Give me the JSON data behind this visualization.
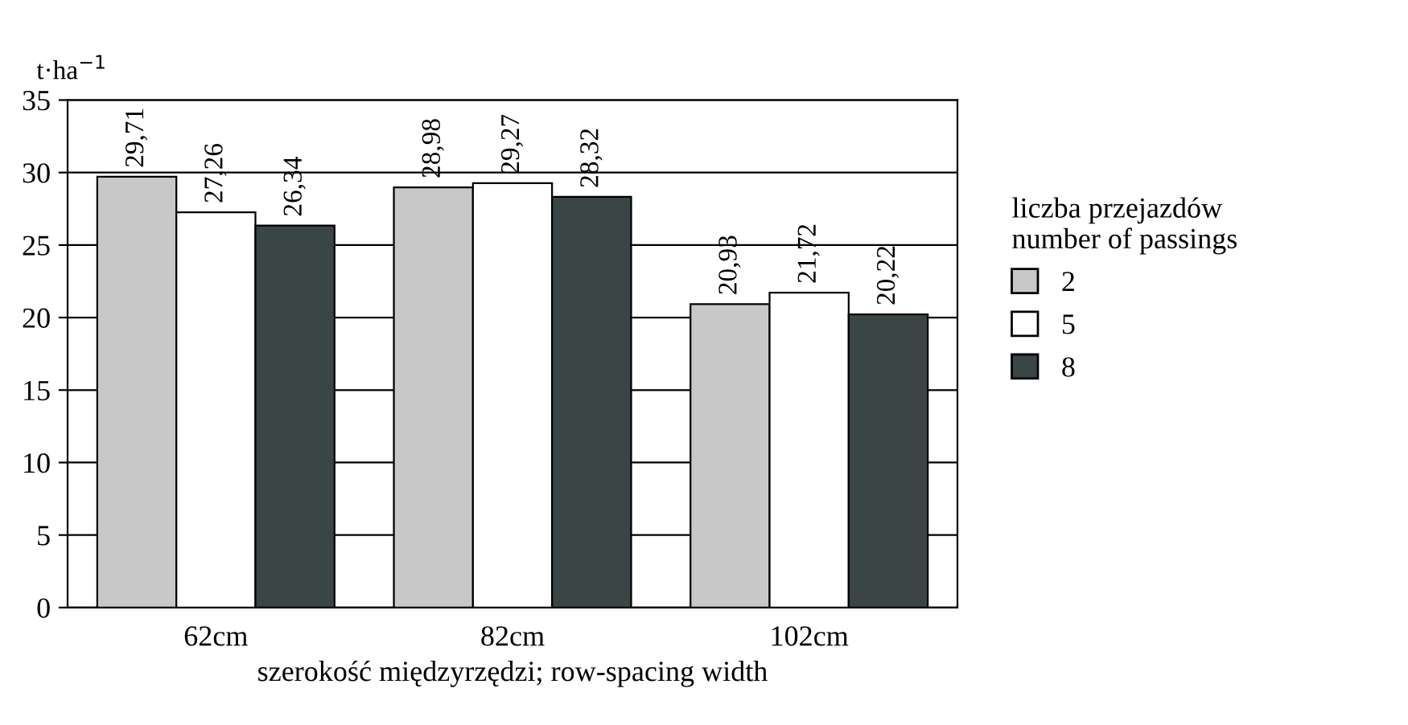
{
  "chart_data": {
    "type": "bar",
    "ylabel": "t·ha$^{−1}$",
    "xlabel": "szerokość międzyrzędzi; row-spacing width",
    "legend_title": "liczba przejazdów\nnumber of passings",
    "categories": [
      "62cm",
      "82cm",
      "102cm"
    ],
    "series": [
      {
        "name": "2",
        "color": "#c8c8c8",
        "values": [
          29.71,
          28.98,
          20.93
        ],
        "value_labels": [
          "29,71",
          "28,98",
          "20,93"
        ]
      },
      {
        "name": "5",
        "color": "#ffffff",
        "values": [
          27.26,
          29.27,
          21.72
        ],
        "value_labels": [
          "27,26",
          "29,27",
          "21,72"
        ]
      },
      {
        "name": "8",
        "color": "#3a4545",
        "values": [
          26.34,
          28.32,
          20.22
        ],
        "value_labels": [
          "26,34",
          "28,32",
          "20,22"
        ]
      }
    ],
    "ylim": [
      0,
      35
    ],
    "yticks": [
      0,
      5,
      10,
      15,
      20,
      25,
      30,
      35
    ],
    "grid": "y",
    "legend": "right"
  }
}
